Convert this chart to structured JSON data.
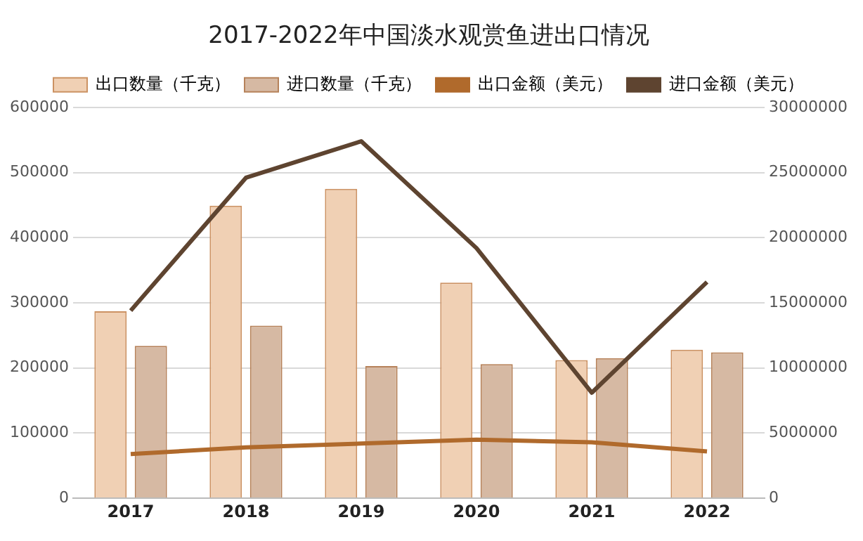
{
  "chart_data": {
    "type": "bar",
    "title": "2017-2022年中国淡水观赏鱼进出口情况",
    "categories": [
      "2017",
      "2018",
      "2019",
      "2020",
      "2021",
      "2022"
    ],
    "series": [
      {
        "name": "出口数量（千克）",
        "color": "#f0d0b4",
        "values": [
          287000,
          449000,
          475000,
          331000,
          212000,
          228000
        ]
      },
      {
        "name": "进口数量（千克）",
        "color": "#d6b9a3",
        "values": [
          234000,
          265000,
          203000,
          206000,
          215000,
          224000
        ]
      },
      {
        "name": "出口金额（美元）",
        "type": "line",
        "axis": "y2",
        "color": "#b06a2c",
        "values": [
          3400000,
          3900000,
          4200000,
          4500000,
          4300000,
          3600000
        ]
      },
      {
        "name": "进口金额（美元）",
        "type": "line",
        "axis": "y2",
        "color": "#5e4430",
        "values": [
          14400000,
          24600000,
          27400000,
          19200000,
          8100000,
          16600000
        ]
      }
    ],
    "ylim": [
      0,
      600000
    ],
    "yticks": [
      0,
      100000,
      200000,
      300000,
      400000,
      500000,
      600000
    ],
    "y2lim": [
      0,
      30000000
    ],
    "y2ticks": [
      0,
      5000000,
      10000000,
      15000000,
      20000000,
      25000000,
      30000000
    ],
    "grid": "y",
    "legend": "top",
    "marker": "none"
  }
}
